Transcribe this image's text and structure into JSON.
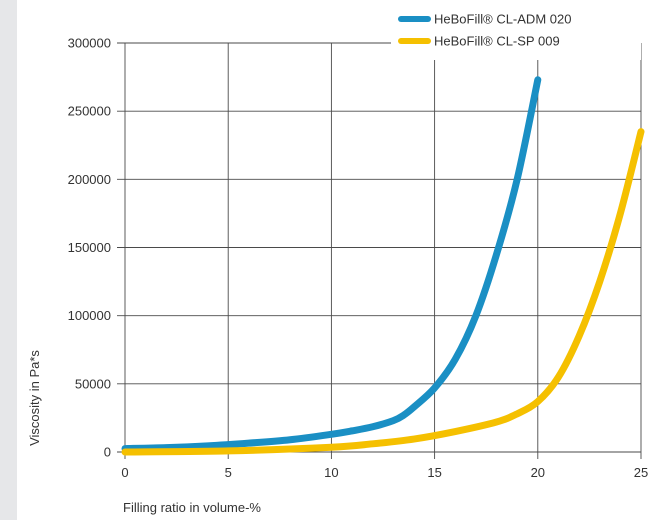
{
  "chart_data": {
    "type": "line",
    "xlabel": "Filling ratio in volume-%",
    "ylabel": "Viscosity in Pa*s",
    "xlim": [
      0,
      25
    ],
    "ylim": [
      0,
      300000
    ],
    "x_ticks": [
      0,
      5,
      10,
      15,
      20,
      25
    ],
    "y_ticks": [
      0,
      50000,
      100000,
      150000,
      200000,
      250000,
      300000
    ],
    "grid": true,
    "legend_position": "top-right",
    "series": [
      {
        "name": "HeBoFill® CL-ADM 020",
        "color": "#1a8fc4",
        "x": [
          0,
          2,
          4,
          6,
          8,
          10,
          11,
          12,
          13,
          13.5,
          14,
          15,
          16,
          17,
          18,
          19,
          20
        ],
        "y": [
          2500,
          3200,
          4500,
          6500,
          9000,
          13000,
          15500,
          18500,
          23000,
          27000,
          33000,
          47000,
          68000,
          100000,
          145000,
          200000,
          273000
        ]
      },
      {
        "name": "HeBoFill® CL-SP 009",
        "color": "#f5c000",
        "x": [
          0,
          5,
          10,
          12,
          14,
          16,
          18,
          19,
          20,
          21,
          22,
          23,
          24,
          25
        ],
        "y": [
          0,
          800,
          3500,
          6000,
          9500,
          15000,
          22000,
          28000,
          37000,
          55000,
          85000,
          125000,
          175000,
          235000
        ]
      }
    ]
  }
}
